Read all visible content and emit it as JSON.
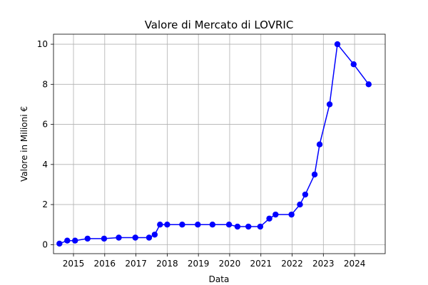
{
  "chart_data": {
    "type": "line",
    "title": "Valore di Mercato di LOVRIC",
    "xlabel": "Data",
    "ylabel": "Valore in Milioni €",
    "xlim": [
      2014.36,
      2024.98
    ],
    "ylim": [
      -0.45,
      10.5
    ],
    "xticks": [
      2015,
      2016,
      2017,
      2018,
      2019,
      2020,
      2021,
      2022,
      2023,
      2024
    ],
    "xtick_labels": [
      "2015",
      "2016",
      "2017",
      "2018",
      "2019",
      "2020",
      "2021",
      "2022",
      "2023",
      "2024"
    ],
    "yticks": [
      0,
      2,
      4,
      6,
      8,
      10
    ],
    "ytick_labels": [
      "0",
      "2",
      "4",
      "6",
      "8",
      "10"
    ],
    "grid": true,
    "color": "#0000ff",
    "series": [
      {
        "x": [
          2014.55,
          2014.8,
          2015.05,
          2015.45,
          2015.98,
          2016.45,
          2016.98,
          2017.42,
          2017.6,
          2017.77,
          2018.0,
          2018.48,
          2018.98,
          2019.45,
          2019.98,
          2020.25,
          2020.6,
          2020.98,
          2021.27,
          2021.47,
          2021.98,
          2022.25,
          2022.42,
          2022.72,
          2022.88,
          2023.2,
          2023.45,
          2023.97,
          2024.45
        ],
        "y": [
          0.05,
          0.2,
          0.2,
          0.3,
          0.3,
          0.35,
          0.35,
          0.35,
          0.5,
          1.0,
          1.0,
          1.0,
          1.0,
          1.0,
          1.0,
          0.9,
          0.9,
          0.9,
          1.3,
          1.5,
          1.5,
          2.0,
          2.5,
          3.5,
          5.0,
          7.0,
          10.0,
          9.0,
          8.0
        ]
      }
    ]
  }
}
